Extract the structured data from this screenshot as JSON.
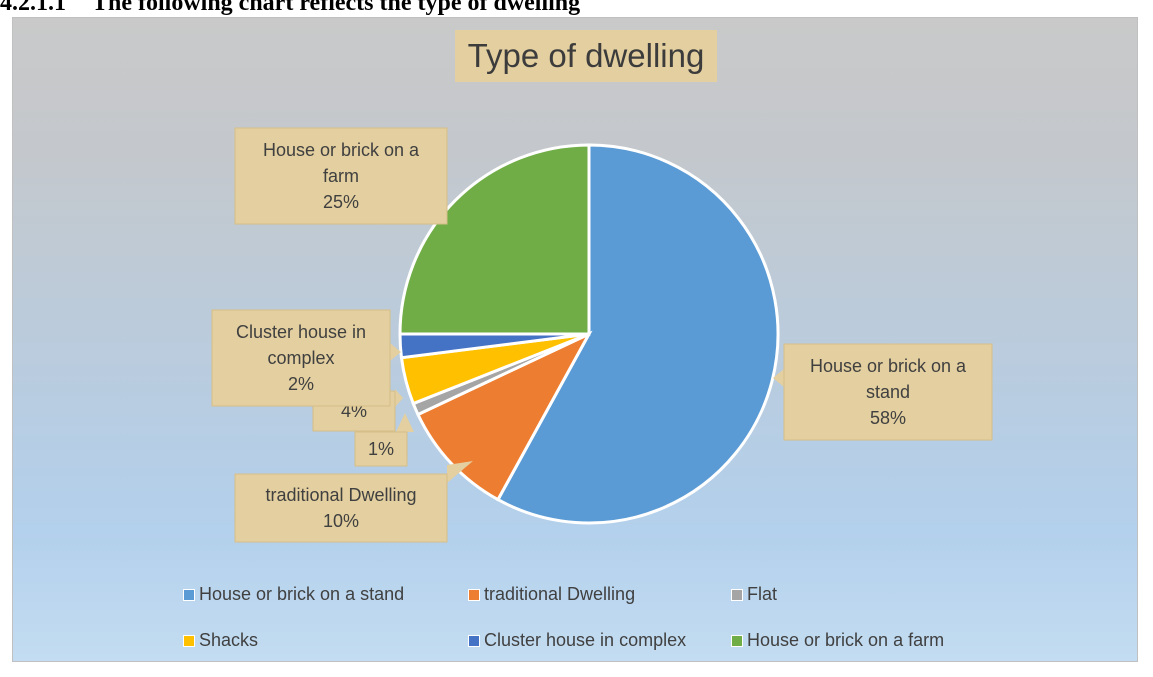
{
  "page": {
    "heading_number": "4.2.1.1",
    "heading_text": "The following chart reflects the type of dwelling"
  },
  "colors": {
    "house_stand": "#5b9bd5",
    "traditional": "#ed7d31",
    "flat": "#a5a5a5",
    "shacks": "#ffc000",
    "cluster": "#4472c4",
    "house_farm": "#70ad47",
    "callout": "#e3cf9f",
    "callout_text": "#404040"
  },
  "chart_data": {
    "type": "pie",
    "title": "Type of dwelling",
    "legend_position": "bottom",
    "slices": [
      {
        "label": "House or brick on a stand",
        "value": 58,
        "value_label": "58%",
        "color": "#5b9bd5"
      },
      {
        "label": "traditional Dwelling",
        "value": 10,
        "value_label": "10%",
        "color": "#ed7d31"
      },
      {
        "label": "Flat",
        "value": 1,
        "value_label": "1%",
        "color": "#a5a5a5"
      },
      {
        "label": "Shacks",
        "value": 4,
        "value_label": "4%",
        "color": "#ffc000"
      },
      {
        "label": "Cluster house in complex",
        "value": 2,
        "value_label": "2%",
        "color": "#4472c4"
      },
      {
        "label": "House or brick on a farm",
        "value": 25,
        "value_label": "25%",
        "color": "#70ad47"
      }
    ],
    "data_labels": {
      "house_stand": [
        "House or brick on a",
        "stand",
        "58%"
      ],
      "traditional": [
        "traditional Dwelling",
        "10%"
      ],
      "flat": [
        "1%"
      ],
      "shacks": [
        "4%"
      ],
      "cluster": [
        "Cluster house in",
        "complex",
        "2%"
      ],
      "house_farm": [
        "House or brick on a",
        "farm",
        "25%"
      ]
    }
  }
}
